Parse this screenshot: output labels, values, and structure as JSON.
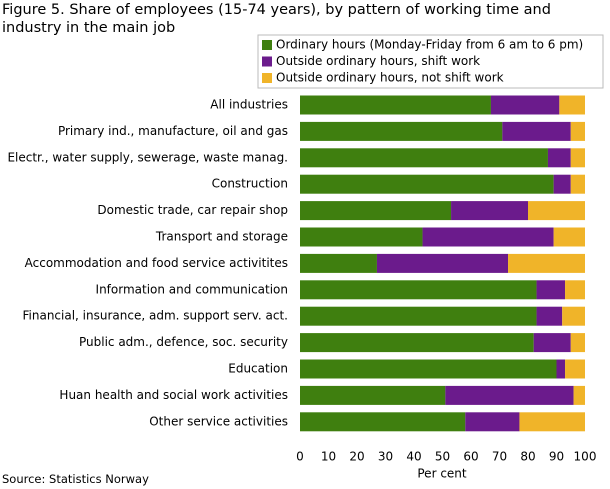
{
  "chart_data": {
    "type": "stacked-barh",
    "title": "Figure 5. Share of employees (15-74 years), by pattern of working time and industry in the main job",
    "source": "Source: Statistics Norway",
    "xlabel": "Per cent",
    "categories": [
      "All industries",
      "Primary ind., manufacture, oil and gas",
      "Electr., water supply, sewerage, waste manag.",
      "Construction",
      "Domestic trade, car repair shop",
      "Transport and storage",
      "Accommodation and food service activitites",
      "Information and communication",
      "Financial, insurance, adm. support serv. act.",
      "Public adm., defence, soc. security",
      "Education",
      "Huan health and social work activities",
      "Other service activities"
    ],
    "series": [
      {
        "name": "Ordinary hours (Monday-Friday from 6 am to 6 pm)",
        "color": "#3f7f0f",
        "values": [
          67,
          71,
          87,
          89,
          53,
          43,
          27,
          83,
          83,
          82,
          90,
          51,
          58
        ]
      },
      {
        "name": "Outside ordinary hours, shift work",
        "color": "#6b1b8c",
        "values": [
          24,
          24,
          8,
          6,
          27,
          46,
          46,
          10,
          9,
          13,
          3,
          45,
          19
        ]
      },
      {
        "name": "Outside ordinary hours, not shift work",
        "color": "#f0b429",
        "values": [
          9,
          5,
          5,
          5,
          20,
          11,
          27,
          7,
          8,
          5,
          7,
          4,
          23
        ]
      }
    ],
    "xlim": [
      0,
      100
    ],
    "xticks": [
      0,
      10,
      20,
      30,
      40,
      50,
      60,
      70,
      80,
      90,
      100
    ]
  }
}
